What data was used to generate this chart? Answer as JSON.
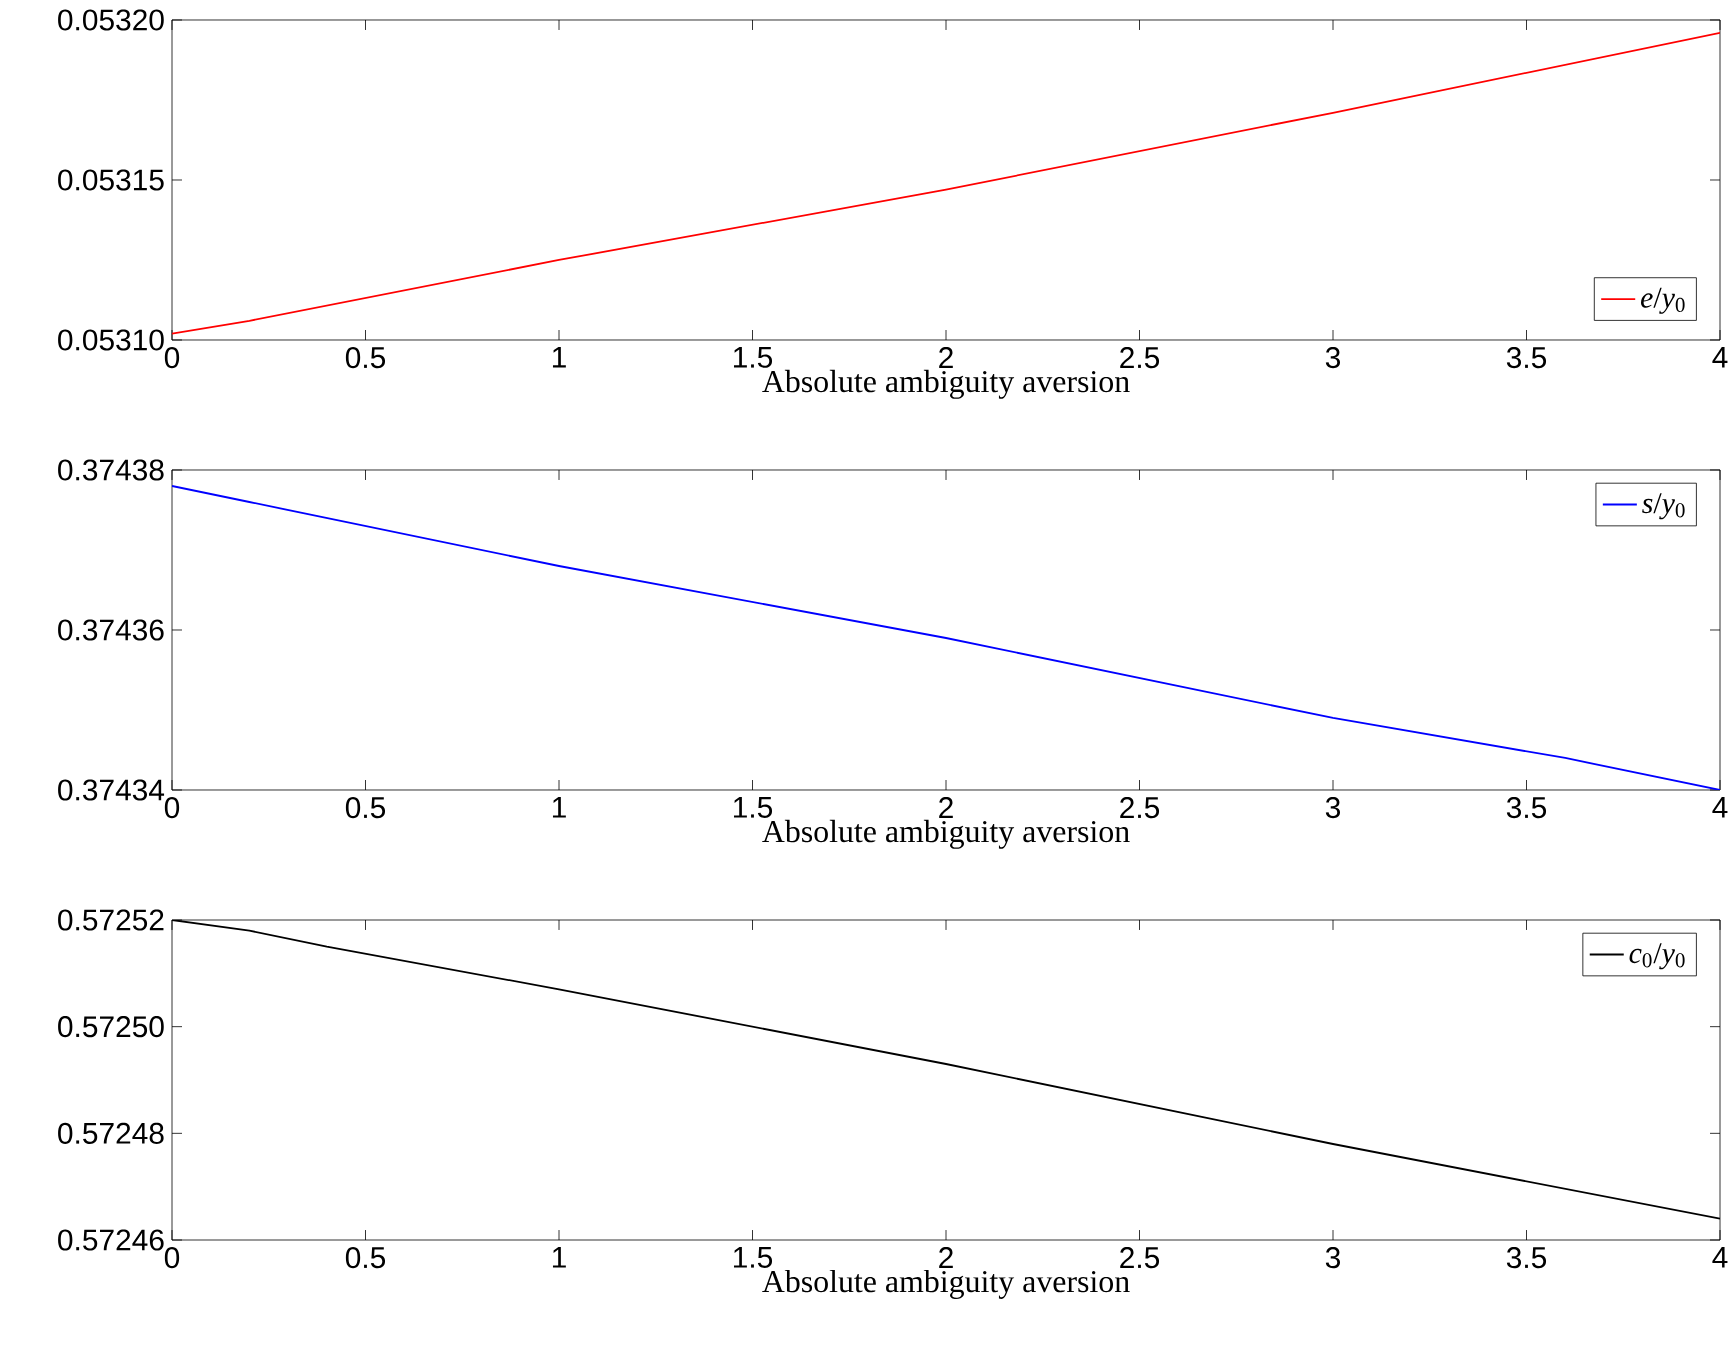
{
  "chart_data": [
    {
      "type": "line",
      "x": [
        0,
        0.2,
        1,
        2,
        3,
        4
      ],
      "xlabel": "Absolute ambiguity aversion",
      "xlim": [
        0,
        4
      ],
      "xticks": [
        0,
        0.5,
        1,
        1.5,
        2,
        2.5,
        3,
        3.5,
        4
      ],
      "ylim": [
        0.0531,
        0.0532
      ],
      "yticks": [
        {
          "value": 0.0531,
          "label": "0.05310"
        },
        {
          "value": 0.05315,
          "label": "0.05315"
        },
        {
          "value": 0.0532,
          "label": "0.05320"
        }
      ],
      "legend": "bottom right",
      "series": [
        {
          "name": "*e*/*y*$_{0}$",
          "color": "#ff0000",
          "values": [
            0.053102,
            0.053106,
            0.053125,
            0.053147,
            0.053171,
            0.053196
          ]
        }
      ]
    },
    {
      "type": "line",
      "x": [
        0,
        0.2,
        1,
        2,
        3,
        3.6,
        4
      ],
      "xlabel": "Absolute ambiguity aversion",
      "xlim": [
        0,
        4
      ],
      "xticks": [
        0,
        0.5,
        1,
        1.5,
        2,
        2.5,
        3,
        3.5,
        4
      ],
      "ylim": [
        0.37434,
        0.37438
      ],
      "yticks": [
        0.37434,
        0.37436,
        0.37438
      ],
      "legend": "top right",
      "series": [
        {
          "name": "*s*/*y*$_{0}$",
          "color": "#0000ff",
          "values": [
            0.374378,
            0.374376,
            0.374368,
            0.374359,
            0.374349,
            0.374344,
            0.37434
          ]
        }
      ]
    },
    {
      "type": "line",
      "x": [
        0,
        0.2,
        0.4,
        1,
        2,
        3,
        4
      ],
      "xlabel": "Absolute ambiguity aversion",
      "xlim": [
        0,
        4
      ],
      "xticks": [
        0,
        0.5,
        1,
        1.5,
        2,
        2.5,
        3,
        3.5,
        4
      ],
      "ylim": [
        0.57246,
        0.57252
      ],
      "yticks": [
        {
          "value": 0.57246,
          "label": "0.57246"
        },
        {
          "value": 0.57248,
          "label": "0.57248"
        },
        {
          "value": 0.5725,
          "label": "0.57250"
        },
        {
          "value": 0.57252,
          "label": "0.57252"
        }
      ],
      "legend": "top right",
      "series": [
        {
          "name": "*c*$_{0}$/*y*$_{0}$",
          "color": "#000000",
          "values": [
            0.57252,
            0.572518,
            0.572515,
            0.572507,
            0.572493,
            0.572478,
            0.572464
          ]
        }
      ]
    }
  ]
}
